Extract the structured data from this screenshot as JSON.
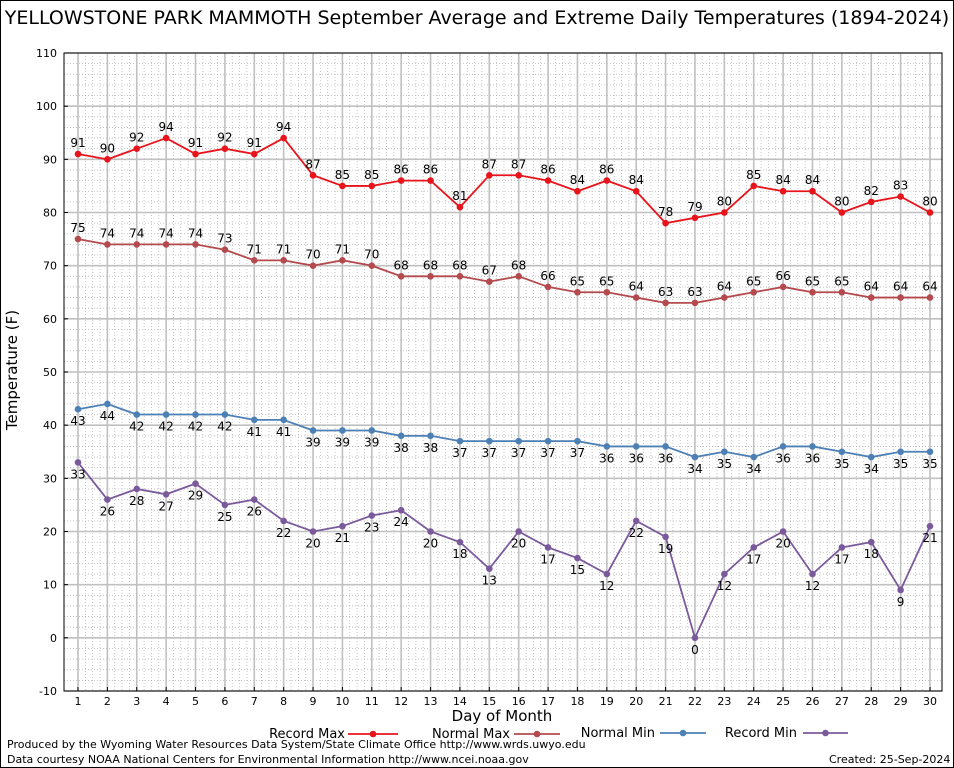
{
  "chart_data": {
    "type": "line",
    "title": "YELLOWSTONE PARK MAMMOTH September Average and Extreme Daily Temperatures (1894-2024)",
    "xlabel": "Day of Month",
    "ylabel": "Temperature (F)",
    "ylim": [
      -10,
      110
    ],
    "yticks": [
      -10,
      0,
      10,
      20,
      30,
      40,
      50,
      60,
      70,
      80,
      90,
      100,
      110
    ],
    "x": [
      1,
      2,
      3,
      4,
      5,
      6,
      7,
      8,
      9,
      10,
      11,
      12,
      13,
      14,
      15,
      16,
      17,
      18,
      19,
      20,
      21,
      22,
      23,
      24,
      25,
      26,
      27,
      28,
      29,
      30
    ],
    "grid": true,
    "legend_position": "bottom",
    "series": [
      {
        "name": "Record Max",
        "color": "#e8141b",
        "values": [
          91,
          90,
          92,
          94,
          91,
          92,
          91,
          94,
          87,
          85,
          85,
          86,
          86,
          81,
          87,
          87,
          86,
          84,
          86,
          84,
          78,
          79,
          80,
          85,
          84,
          84,
          80,
          82,
          83,
          80
        ]
      },
      {
        "name": "Normal Max",
        "color": "#b44a4e",
        "values": [
          75,
          74,
          74,
          74,
          74,
          73,
          71,
          71,
          70,
          71,
          70,
          68,
          68,
          68,
          67,
          68,
          66,
          65,
          65,
          64,
          63,
          63,
          64,
          65,
          66,
          65,
          65,
          64,
          64,
          64
        ]
      },
      {
        "name": "Normal Min",
        "color": "#4d80b5",
        "values": [
          43,
          44,
          42,
          42,
          42,
          42,
          41,
          41,
          39,
          39,
          39,
          38,
          38,
          37,
          37,
          37,
          37,
          37,
          36,
          36,
          36,
          34,
          35,
          34,
          36,
          36,
          35,
          34,
          35,
          35
        ]
      },
      {
        "name": "Record Min",
        "color": "#7b5a9c",
        "values": [
          33,
          26,
          28,
          27,
          29,
          25,
          26,
          22,
          20,
          21,
          23,
          24,
          20,
          18,
          13,
          20,
          17,
          15,
          12,
          22,
          19,
          0,
          12,
          17,
          20,
          12,
          17,
          18,
          9,
          21
        ]
      }
    ]
  },
  "footer": {
    "produced_by": "Produced by the Wyoming Water Resources Data System/State Climate Office http://www.wrds.uwyo.edu",
    "courtesy": "Data courtesy NOAA National Centers for Environmental Information http://www.ncei.noaa.gov",
    "created": "Created:  25-Sep-2024"
  }
}
